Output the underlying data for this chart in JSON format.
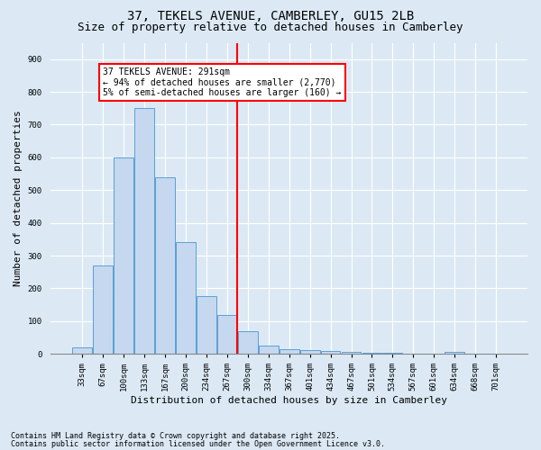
{
  "title1": "37, TEKELS AVENUE, CAMBERLEY, GU15 2LB",
  "title2": "Size of property relative to detached houses in Camberley",
  "xlabel": "Distribution of detached houses by size in Camberley",
  "ylabel": "Number of detached properties",
  "categories": [
    "33sqm",
    "67sqm",
    "100sqm",
    "133sqm",
    "167sqm",
    "200sqm",
    "234sqm",
    "267sqm",
    "300sqm",
    "334sqm",
    "367sqm",
    "401sqm",
    "434sqm",
    "467sqm",
    "501sqm",
    "534sqm",
    "567sqm",
    "601sqm",
    "634sqm",
    "668sqm",
    "701sqm"
  ],
  "values": [
    20,
    270,
    600,
    750,
    540,
    340,
    175,
    120,
    68,
    25,
    15,
    12,
    10,
    5,
    3,
    2,
    1,
    0,
    7,
    0,
    0
  ],
  "bar_color": "#c5d8f0",
  "bar_edge_color": "#5a9fd4",
  "vline_idx": 8,
  "vline_color": "red",
  "annotation_text": "37 TEKELS AVENUE: 291sqm\n← 94% of detached houses are smaller (2,770)\n5% of semi-detached houses are larger (160) →",
  "annotation_box_color": "#ffffff",
  "annotation_box_edge": "red",
  "bg_color": "#dce9f5",
  "plot_bg_color": "#dce9f5",
  "ylim": [
    0,
    950
  ],
  "yticks": [
    0,
    100,
    200,
    300,
    400,
    500,
    600,
    700,
    800,
    900
  ],
  "footer1": "Contains HM Land Registry data © Crown copyright and database right 2025.",
  "footer2": "Contains public sector information licensed under the Open Government Licence v3.0.",
  "title1_fontsize": 10,
  "title2_fontsize": 9,
  "tick_fontsize": 6.5,
  "ylabel_fontsize": 8,
  "xlabel_fontsize": 8,
  "footer_fontsize": 6,
  "ann_fontsize": 7
}
